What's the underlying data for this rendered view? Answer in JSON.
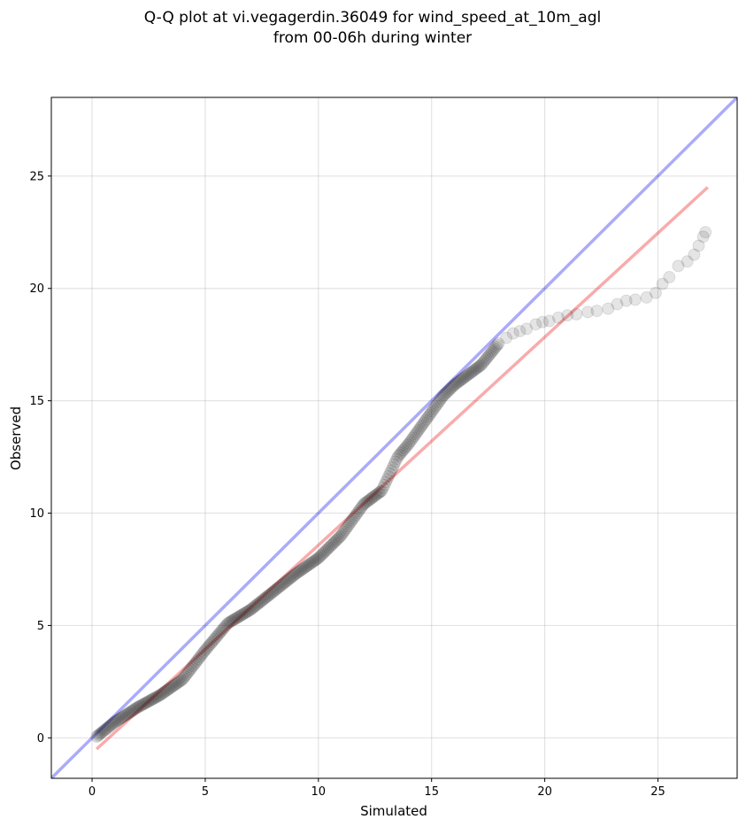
{
  "chart_data": {
    "type": "scatter",
    "title_lines": [
      "Q-Q plot at vi.vegagerdin.36049 for wind_speed_at_10m_agl",
      "from 00-06h during winter"
    ],
    "xlabel": "Simulated",
    "ylabel": "Observed",
    "xlim": [
      -1.8,
      28.5
    ],
    "ylim": [
      -1.8,
      28.5
    ],
    "xticks": [
      0,
      5,
      10,
      15,
      20,
      25
    ],
    "yticks": [
      0,
      5,
      10,
      15,
      20,
      25
    ],
    "grid": true,
    "colors": {
      "points": "#000000",
      "identity_line": "#0000ee",
      "fit_line": "#ee0000"
    },
    "identity_line": [
      [
        -1.8,
        -1.8
      ],
      [
        28.5,
        28.5
      ]
    ],
    "fit_line": [
      [
        0.2,
        -0.5
      ],
      [
        27.2,
        24.5
      ]
    ],
    "qq_curve": [
      [
        0.2,
        0.05
      ],
      [
        0.5,
        0.3
      ],
      [
        1.0,
        0.7
      ],
      [
        2.0,
        1.35
      ],
      [
        3.0,
        1.9
      ],
      [
        4.0,
        2.6
      ],
      [
        5.0,
        3.9
      ],
      [
        6.0,
        5.1
      ],
      [
        7.0,
        5.7
      ],
      [
        8.0,
        6.5
      ],
      [
        9.0,
        7.3
      ],
      [
        10.0,
        8.0
      ],
      [
        11.0,
        9.0
      ],
      [
        12.0,
        10.4
      ],
      [
        12.8,
        11.0
      ],
      [
        13.5,
        12.5
      ],
      [
        14.0,
        13.1
      ],
      [
        14.5,
        13.8
      ],
      [
        15.0,
        14.5
      ],
      [
        15.5,
        15.2
      ],
      [
        16.0,
        15.7
      ],
      [
        16.8,
        16.3
      ],
      [
        17.2,
        16.6
      ],
      [
        17.6,
        17.1
      ],
      [
        18.0,
        17.6
      ]
    ],
    "upper_tail_points": [
      [
        18.3,
        17.8
      ],
      [
        18.6,
        18.0
      ],
      [
        18.9,
        18.1
      ],
      [
        19.2,
        18.2
      ],
      [
        19.6,
        18.4
      ],
      [
        19.9,
        18.5
      ],
      [
        20.2,
        18.55
      ],
      [
        20.6,
        18.7
      ],
      [
        21.0,
        18.8
      ],
      [
        21.4,
        18.85
      ],
      [
        21.9,
        18.95
      ],
      [
        22.3,
        19.0
      ],
      [
        22.8,
        19.1
      ],
      [
        23.2,
        19.3
      ],
      [
        23.6,
        19.45
      ],
      [
        24.0,
        19.5
      ],
      [
        24.5,
        19.6
      ],
      [
        24.9,
        19.8
      ],
      [
        25.2,
        20.2
      ],
      [
        25.5,
        20.5
      ],
      [
        25.9,
        21.0
      ],
      [
        26.3,
        21.2
      ],
      [
        26.6,
        21.5
      ],
      [
        26.8,
        21.9
      ],
      [
        27.0,
        22.3
      ],
      [
        27.1,
        22.5
      ]
    ]
  }
}
